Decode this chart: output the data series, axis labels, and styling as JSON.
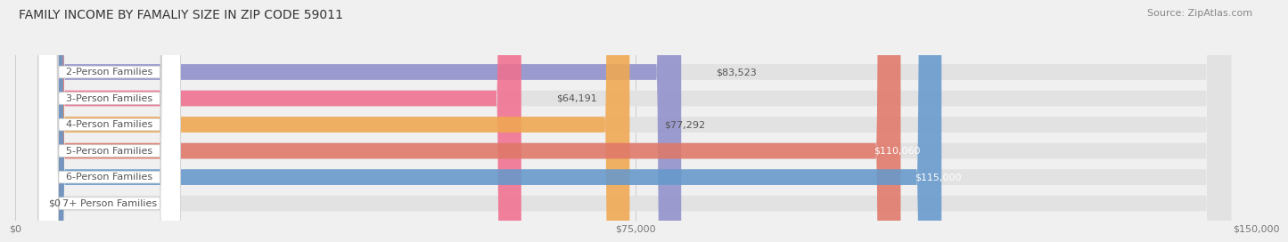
{
  "title": "FAMILY INCOME BY FAMALIY SIZE IN ZIP CODE 59011",
  "source": "Source: ZipAtlas.com",
  "categories": [
    "2-Person Families",
    "3-Person Families",
    "4-Person Families",
    "5-Person Families",
    "6-Person Families",
    "7+ Person Families"
  ],
  "values": [
    83523,
    64191,
    77292,
    110060,
    115000,
    0
  ],
  "bar_colors": [
    "#9090cc",
    "#f07090",
    "#f0a850",
    "#e07868",
    "#6699cc",
    "#c0a8c8"
  ],
  "value_labels": [
    "$83,523",
    "$64,191",
    "$77,292",
    "$110,060",
    "$115,000",
    "$0"
  ],
  "value_inside": [
    false,
    false,
    false,
    true,
    true,
    false
  ],
  "xlim": [
    0,
    150000
  ],
  "xticks": [
    0,
    75000,
    150000
  ],
  "xticklabels": [
    "$0",
    "$75,000",
    "$150,000"
  ],
  "title_fontsize": 10,
  "source_fontsize": 8,
  "label_fontsize": 8,
  "value_fontsize": 8,
  "background_color": "#f0f0f0"
}
